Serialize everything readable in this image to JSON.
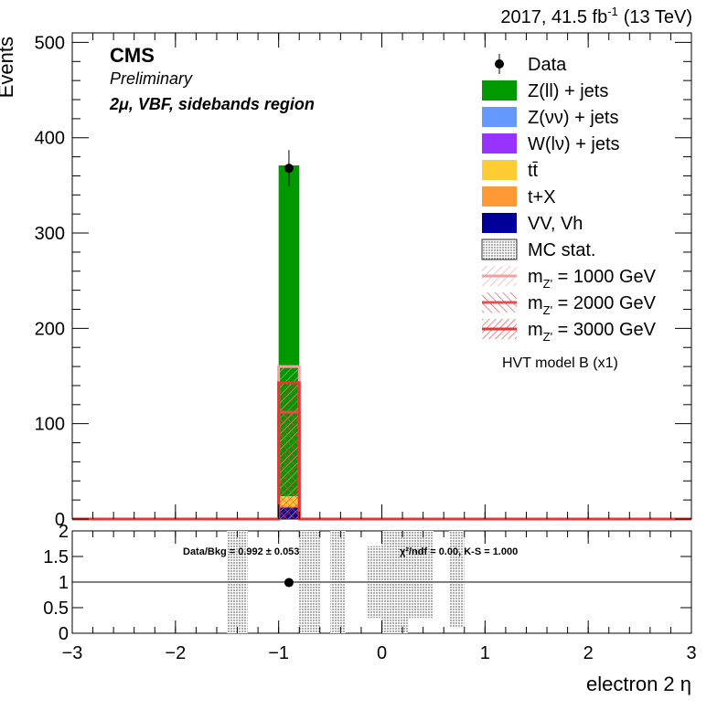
{
  "header": {
    "lumi_prefix": "2017, 41.5 fb",
    "lumi_sup": "-1",
    "lumi_suffix": "(13 TeV)"
  },
  "cms": {
    "label": "CMS",
    "sublabel": "Preliminary",
    "region": "2μ, VBF, sidebands region"
  },
  "chart_data": [
    {
      "type": "bar",
      "panel": "main",
      "ylabel": "Events",
      "xlim": [
        -3,
        3
      ],
      "ylim": [
        0,
        510
      ],
      "yticks": [
        0,
        100,
        200,
        300,
        400,
        500
      ],
      "stacked_background": {
        "bin": [
          -1.0,
          -0.8
        ],
        "components": [
          {
            "name": "VV, Vh",
            "value": 12,
            "color": "#000099"
          },
          {
            "name": "t+X",
            "value": 2,
            "color": "#ff9933"
          },
          {
            "name": "tt̄",
            "value": 10,
            "color": "#ffcc33"
          },
          {
            "name": "W(lν) + jets",
            "value": 0,
            "color": "#9933ff"
          },
          {
            "name": "Z(νν) + jets",
            "value": 0,
            "color": "#6699ff"
          },
          {
            "name": "Z(ll) + jets",
            "value": 347,
            "color": "#009900"
          }
        ],
        "total": 371
      },
      "data_points": [
        {
          "x": -0.9,
          "y": 368,
          "err": 19
        }
      ],
      "signals": [
        {
          "name": "m_Z' = 1000 GeV",
          "value": 160,
          "color": "#f5a0a0"
        },
        {
          "name": "m_Z' = 2000 GeV",
          "value": 112,
          "color": "#e05050"
        },
        {
          "name": "m_Z' = 3000 GeV",
          "value": 143,
          "color": "#ee3333"
        }
      ],
      "legend": {
        "position": "top-right",
        "entries": [
          {
            "label": "Data",
            "kind": "marker"
          },
          {
            "label": "Z(ll) + jets",
            "kind": "fill",
            "color": "#009900"
          },
          {
            "label": "Z(νν) + jets",
            "kind": "fill",
            "color": "#6699ff"
          },
          {
            "label": "W(lν) + jets",
            "kind": "fill",
            "color": "#9933ff"
          },
          {
            "label": "tt̄",
            "kind": "fill",
            "color": "#ffcc33"
          },
          {
            "label": "t+X",
            "kind": "fill",
            "color": "#ff9933"
          },
          {
            "label": "VV, Vh",
            "kind": "fill",
            "color": "#000099"
          },
          {
            "label": "MC stat.",
            "kind": "stat"
          },
          {
            "label": "m",
            "sub": "Z'",
            "rest": " = 1000 GeV",
            "kind": "signal",
            "color": "#f5a0a0"
          },
          {
            "label": "m",
            "sub": "Z'",
            "rest": " = 2000 GeV",
            "kind": "signal",
            "color": "#e05050"
          },
          {
            "label": "m",
            "sub": "Z'",
            "rest": " = 3000 GeV",
            "kind": "signal",
            "color": "#ee3333"
          }
        ],
        "model_note": "HVT model B (x1)"
      }
    },
    {
      "type": "scatter",
      "panel": "ratio",
      "xlabel": "electron 2 η",
      "xlim": [
        -3,
        3
      ],
      "ylim": [
        0,
        2
      ],
      "yticks": [
        0,
        0.5,
        1,
        1.5,
        2
      ],
      "ytick_labels": [
        "0",
        "0.5",
        "1",
        "1.5",
        "2"
      ],
      "xticks": [
        -3,
        -2,
        -1,
        0,
        1,
        2,
        3
      ],
      "xtick_labels": [
        "−3",
        "−2",
        "−1",
        "0",
        "1",
        "2",
        "3"
      ],
      "reference_line": 1,
      "points": [
        {
          "x": -0.9,
          "y": 0.99
        }
      ],
      "stat_bands": [
        {
          "x0": -1.5,
          "x1": -1.3,
          "lo": 0,
          "hi": 2
        },
        {
          "x0": -0.8,
          "x1": -0.6,
          "lo": 0,
          "hi": 2
        },
        {
          "x0": -0.5,
          "x1": -0.35,
          "lo": 0,
          "hi": 2
        },
        {
          "x0": -0.15,
          "x1": 0.0,
          "lo": 0.3,
          "hi": 1.7
        },
        {
          "x0": 0.0,
          "x1": 0.25,
          "lo": 0,
          "hi": 2
        },
        {
          "x0": 0.25,
          "x1": 0.5,
          "lo": 0.3,
          "hi": 2
        },
        {
          "x0": 0.65,
          "x1": 0.8,
          "lo": 0.1,
          "hi": 2
        }
      ],
      "stats_text": {
        "data_bkg": "Data/Bkg = 0.992 ± 0.053",
        "chi2": "χ²/ndf = 0.00,   K-S = 1.000"
      }
    }
  ]
}
